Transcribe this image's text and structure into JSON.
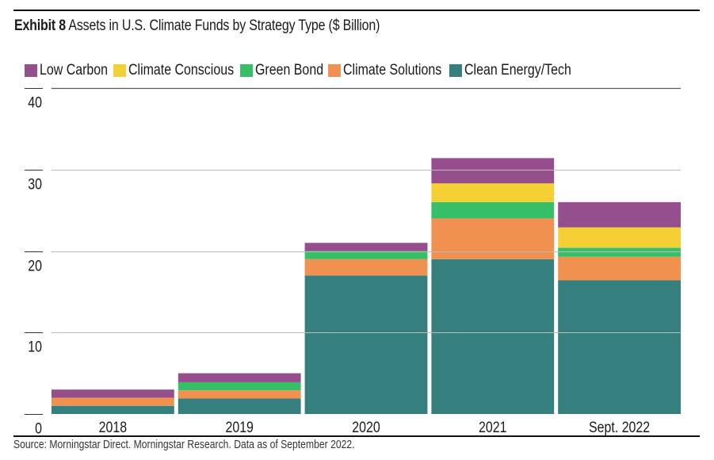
{
  "title": {
    "prefix": "Exhibit 8",
    "text": "Assets in U.S.  Climate Funds by Strategy Type ($ Billion)"
  },
  "source": "Source: Morningstar Direct. Morningstar Research. Data as of September 2022.",
  "chart_data": {
    "type": "bar",
    "stacked": true,
    "title": "Exhibit 8 Assets in U.S. Climate Funds by Strategy Type ($ Billion)",
    "xlabel": "",
    "ylabel": "",
    "ylim": [
      0,
      40
    ],
    "yticks": [
      0,
      10,
      20,
      30,
      40
    ],
    "ytick_labels": [
      "0",
      "10",
      "20",
      "30",
      "40"
    ],
    "grid": true,
    "legend_position": "top-left",
    "categories": [
      "2018",
      "2019",
      "2020",
      "2021",
      "Sept. 2022"
    ],
    "series": [
      {
        "name": "Clean Energy/Tech",
        "color": "#357f7f",
        "values": [
          1.0,
          1.9,
          17.0,
          19.0,
          16.4
        ]
      },
      {
        "name": "Climate Solutions",
        "color": "#f0914f",
        "values": [
          1.0,
          1.0,
          2.0,
          5.0,
          2.9
        ]
      },
      {
        "name": "Green Bond",
        "color": "#36bf66",
        "values": [
          0.0,
          1.0,
          1.0,
          2.0,
          1.1
        ]
      },
      {
        "name": "Climate Conscious",
        "color": "#f5d035",
        "values": [
          0.0,
          0.0,
          0.0,
          2.3,
          2.5
        ]
      },
      {
        "name": "Low Carbon",
        "color": "#954f8c",
        "values": [
          1.0,
          1.1,
          1.0,
          3.1,
          3.1
        ]
      }
    ],
    "legend_order": [
      "Low Carbon",
      "Climate Conscious",
      "Green Bond",
      "Climate Solutions",
      "Clean Energy/Tech"
    ]
  }
}
